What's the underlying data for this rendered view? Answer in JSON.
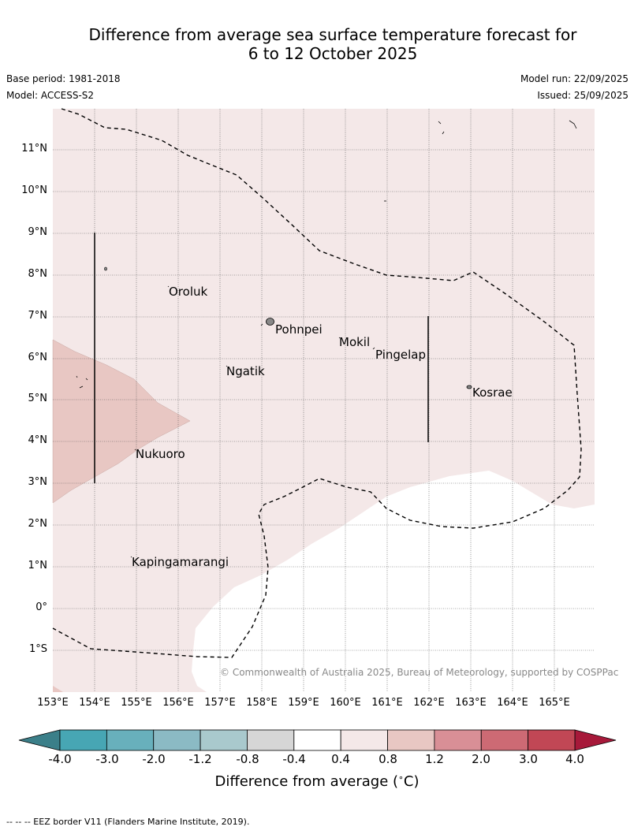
{
  "title_line1": "Difference from average sea surface temperature forecast for",
  "title_line2": "6 to 12 October 2025",
  "base_period": "Base period: 1981-2018",
  "model": "Model: ACCESS-S2",
  "model_run": "Model run: 22/09/2025",
  "issued": "Issued: 25/09/2025",
  "credit": "© Commonwealth of Australia 2025, Bureau of Meteorology, supported by COSPPac",
  "lat_labels": [
    "11°N",
    "10°N",
    "9°N",
    "8°N",
    "7°N",
    "6°N",
    "5°N",
    "4°N",
    "3°N",
    "2°N",
    "1°N",
    "0°",
    "1°S"
  ],
  "lon_labels": [
    "153°E",
    "154°E",
    "155°E",
    "156°E",
    "157°E",
    "158°E",
    "159°E",
    "160°E",
    "161°E",
    "162°E",
    "163°E",
    "164°E",
    "165°E"
  ],
  "places": [
    "Oroluk",
    "Pohnpei",
    "Mokil",
    "Pingelap",
    "Ngatik",
    "Kosrae",
    "Nukuoro",
    "Kapingamarangi"
  ],
  "colorbar": {
    "ticks": [
      "-4.0",
      "-3.0",
      "-2.0",
      "-1.2",
      "-0.8",
      "-0.4",
      "0.4",
      "0.8",
      "1.2",
      "2.0",
      "3.0",
      "4.0"
    ],
    "colors": [
      "#47a6b4",
      "#68b0bc",
      "#8bbac4",
      "#a9c9cd",
      "#d6d6d6",
      "#ffffff",
      "#f4e8e8",
      "#e8c7c3",
      "#d98f96",
      "#cd6a74",
      "#c14755"
    ],
    "low_extend_color": "#3b7f89",
    "high_extend_color": "#a7193a",
    "label": "Difference from average (",
    "label_unit": "∘",
    "label_end": "C)"
  },
  "footer": "--  --  -- EEZ border V11 (Flanders Marine Institute, 2019)."
}
